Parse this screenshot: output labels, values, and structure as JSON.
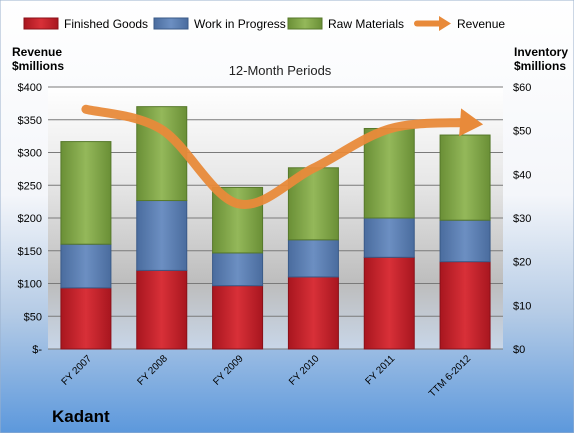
{
  "chart_data": {
    "type": "bar",
    "stacked": true,
    "subtitle": "12-Month Periods",
    "company": "Kadant",
    "categories": [
      "FY 2007",
      "FY 2008",
      "FY 2009",
      "FY 2010",
      "FY 2011",
      "TTM 6-2012"
    ],
    "left_axis": {
      "label_line1": "Revenue",
      "label_line2": "$millions",
      "ylim": [
        0,
        400
      ],
      "ticks": [
        "$-",
        "$50",
        "$100",
        "$150",
        "$200",
        "$250",
        "$300",
        "$350",
        "$400"
      ]
    },
    "right_axis": {
      "label_line1": "Inventory",
      "label_line2": "$millions",
      "ylim": [
        0,
        60
      ],
      "ticks": [
        "$0",
        "$10",
        "$20",
        "$30",
        "$40",
        "$50",
        "$60"
      ]
    },
    "series": [
      {
        "name": "Finished Goods",
        "axis": "right",
        "color": "#c0202a",
        "values": [
          14,
          18,
          14.5,
          16.5,
          21,
          20
        ]
      },
      {
        "name": "Work in Progress",
        "axis": "right",
        "color": "#5a7fb4",
        "values": [
          10,
          16,
          7.5,
          8.5,
          9,
          9.5
        ]
      },
      {
        "name": "Raw Materials",
        "axis": "right",
        "color": "#7fa644",
        "values": [
          23.5,
          21.5,
          15,
          16.5,
          20.5,
          19.5
        ]
      }
    ],
    "line_series": {
      "name": "Revenue",
      "axis": "left",
      "color": "#e88a3a",
      "values": [
        366,
        335,
        222,
        276,
        336,
        346
      ]
    },
    "grid": true,
    "legend_position": "top"
  }
}
